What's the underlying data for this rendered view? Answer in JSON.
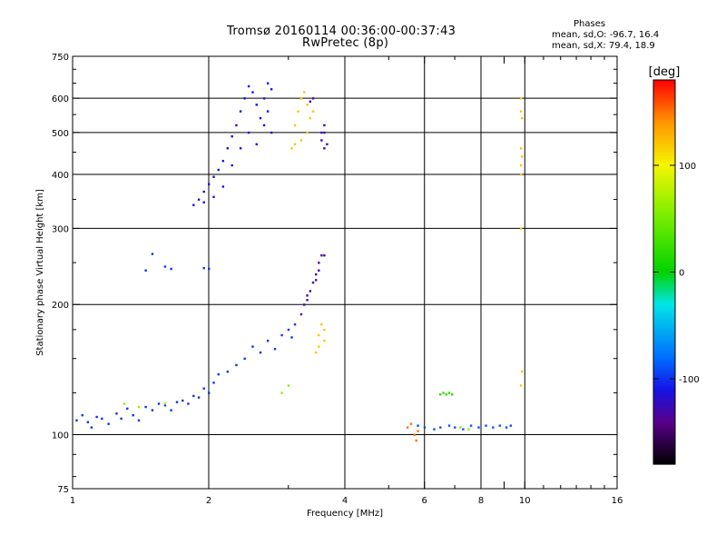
{
  "header": {
    "title_line1": "Tromsø 20160114 00:36:00-00:37:43",
    "title_line2": "RwPretec (8p)",
    "phases_heading": "Phases",
    "phases_line1": "mean, sd,O: -96.7, 16.4",
    "phases_line2": "mean, sd,X:  79.4, 18.9"
  },
  "chart_data": {
    "type": "scatter",
    "xlabel": "Frequency [MHz]",
    "ylabel": "Stationary phase Virtual Height [km]",
    "x_scale": "log2",
    "y_scale": "log",
    "xlim": [
      1,
      16
    ],
    "ylim": [
      75,
      750
    ],
    "x_ticks": [
      1,
      2,
      4,
      6,
      8,
      9,
      10,
      16
    ],
    "x_tick_labels": [
      "1",
      "2",
      "4",
      "6",
      "8",
      "",
      "10",
      "16"
    ],
    "x_gridlines": [
      2,
      4,
      6,
      8,
      10
    ],
    "y_ticks": [
      75,
      100,
      200,
      300,
      400,
      500,
      600,
      750
    ],
    "y_tick_labels": [
      "75",
      "100",
      "200",
      "300",
      "400",
      "500",
      "600",
      "750"
    ],
    "y_gridlines": [
      100,
      200,
      300,
      400,
      500,
      600
    ],
    "grid": true,
    "colorbar": {
      "label": "[deg]",
      "range": [
        -180,
        180
      ],
      "ticks": [
        100,
        0,
        -100
      ],
      "tick_labels": [
        "100",
        "0",
        "-100"
      ]
    },
    "series": [
      {
        "phase": -100,
        "points": [
          [
            1.02,
            108
          ],
          [
            1.05,
            111
          ],
          [
            1.08,
            107
          ],
          [
            1.1,
            104
          ],
          [
            1.13,
            110
          ],
          [
            1.16,
            109
          ],
          [
            1.2,
            106
          ],
          [
            1.25,
            112
          ],
          [
            1.28,
            109
          ],
          [
            1.32,
            115
          ],
          [
            1.36,
            111
          ],
          [
            1.4,
            108
          ],
          [
            1.45,
            116
          ],
          [
            1.5,
            114
          ],
          [
            1.55,
            118
          ],
          [
            1.6,
            117
          ],
          [
            1.65,
            114
          ],
          [
            1.7,
            119
          ],
          [
            1.75,
            120
          ],
          [
            1.8,
            118
          ],
          [
            1.85,
            123
          ],
          [
            1.9,
            122
          ],
          [
            1.95,
            128
          ],
          [
            2.0,
            125
          ],
          [
            2.05,
            132
          ],
          [
            2.1,
            138
          ],
          [
            2.2,
            140
          ],
          [
            2.3,
            145
          ],
          [
            2.4,
            150
          ],
          [
            2.5,
            160
          ],
          [
            2.6,
            155
          ],
          [
            2.7,
            165
          ],
          [
            2.8,
            158
          ],
          [
            2.9,
            170
          ],
          [
            3.0,
            175
          ],
          [
            3.05,
            168
          ],
          [
            3.1,
            180
          ],
          [
            1.5,
            262
          ],
          [
            1.6,
            245
          ],
          [
            1.65,
            242
          ],
          [
            1.95,
            243
          ],
          [
            2.0,
            242
          ],
          [
            1.45,
            240
          ]
        ]
      },
      {
        "phase": -110,
        "points": [
          [
            1.85,
            340
          ],
          [
            1.9,
            350
          ],
          [
            1.95,
            365
          ],
          [
            2.0,
            380
          ],
          [
            2.05,
            395
          ],
          [
            2.1,
            410
          ],
          [
            2.15,
            430
          ],
          [
            2.2,
            460
          ],
          [
            2.25,
            490
          ],
          [
            2.3,
            520
          ],
          [
            2.35,
            560
          ],
          [
            2.4,
            600
          ],
          [
            2.45,
            640
          ],
          [
            2.5,
            620
          ],
          [
            2.55,
            580
          ],
          [
            2.6,
            540
          ],
          [
            2.65,
            600
          ],
          [
            2.7,
            650
          ],
          [
            2.75,
            630
          ],
          [
            1.95,
            345
          ],
          [
            2.05,
            355
          ],
          [
            2.15,
            375
          ],
          [
            2.25,
            420
          ],
          [
            2.35,
            460
          ],
          [
            2.45,
            500
          ],
          [
            2.55,
            470
          ],
          [
            2.65,
            520
          ],
          [
            2.7,
            560
          ],
          [
            2.75,
            500
          ]
        ]
      },
      {
        "phase": -130,
        "points": [
          [
            3.2,
            190
          ],
          [
            3.25,
            200
          ],
          [
            3.3,
            210
          ],
          [
            3.35,
            215
          ],
          [
            3.4,
            225
          ],
          [
            3.45,
            235
          ],
          [
            3.5,
            250
          ],
          [
            3.55,
            260
          ],
          [
            3.5,
            240
          ],
          [
            3.45,
            228
          ],
          [
            3.3,
            205
          ],
          [
            3.6,
            260
          ],
          [
            3.6,
            500
          ],
          [
            3.55,
            480
          ],
          [
            3.6,
            460
          ],
          [
            3.65,
            470
          ],
          [
            3.55,
            500
          ],
          [
            3.6,
            520
          ],
          [
            3.35,
            590
          ],
          [
            3.4,
            600
          ]
        ]
      },
      {
        "phase": 120,
        "points": [
          [
            3.1,
            520
          ],
          [
            3.15,
            560
          ],
          [
            3.2,
            600
          ],
          [
            3.25,
            620
          ],
          [
            3.3,
            580
          ],
          [
            3.35,
            540
          ],
          [
            3.3,
            500
          ],
          [
            3.2,
            480
          ],
          [
            3.1,
            470
          ],
          [
            3.05,
            460
          ],
          [
            3.4,
            560
          ],
          [
            3.5,
            170
          ],
          [
            3.55,
            180
          ],
          [
            3.6,
            165
          ],
          [
            3.5,
            160
          ],
          [
            3.6,
            175
          ],
          [
            3.45,
            155
          ],
          [
            9.8,
            600
          ],
          [
            9.8,
            560
          ],
          [
            9.85,
            540
          ],
          [
            9.8,
            460
          ],
          [
            9.85,
            440
          ],
          [
            9.8,
            420
          ],
          [
            9.8,
            400
          ],
          [
            9.8,
            300
          ],
          [
            9.85,
            140
          ],
          [
            9.8,
            130
          ]
        ]
      },
      {
        "phase": -90,
        "points": [
          [
            5.8,
            105
          ],
          [
            6.0,
            104
          ],
          [
            6.3,
            103
          ],
          [
            6.5,
            104
          ],
          [
            6.8,
            105
          ],
          [
            7.0,
            104
          ],
          [
            7.3,
            103
          ],
          [
            7.6,
            105
          ],
          [
            7.9,
            104
          ],
          [
            8.2,
            105
          ],
          [
            8.5,
            104
          ],
          [
            8.8,
            105
          ],
          [
            9.1,
            104
          ],
          [
            9.3,
            105
          ]
        ]
      },
      {
        "phase": 20,
        "points": [
          [
            6.5,
            124
          ],
          [
            6.6,
            125
          ],
          [
            6.7,
            124
          ],
          [
            6.8,
            125
          ],
          [
            6.9,
            124
          ]
        ]
      },
      {
        "phase": 150,
        "points": [
          [
            5.5,
            104
          ],
          [
            5.6,
            106
          ],
          [
            5.7,
            100
          ],
          [
            5.75,
            97
          ],
          [
            5.8,
            102
          ]
        ]
      },
      {
        "phase": 60,
        "points": [
          [
            1.3,
            118
          ],
          [
            1.4,
            116
          ],
          [
            1.6,
            118
          ],
          [
            2.9,
            125
          ],
          [
            3.0,
            130
          ],
          [
            7.2,
            104
          ],
          [
            7.5,
            103
          ]
        ]
      }
    ]
  }
}
